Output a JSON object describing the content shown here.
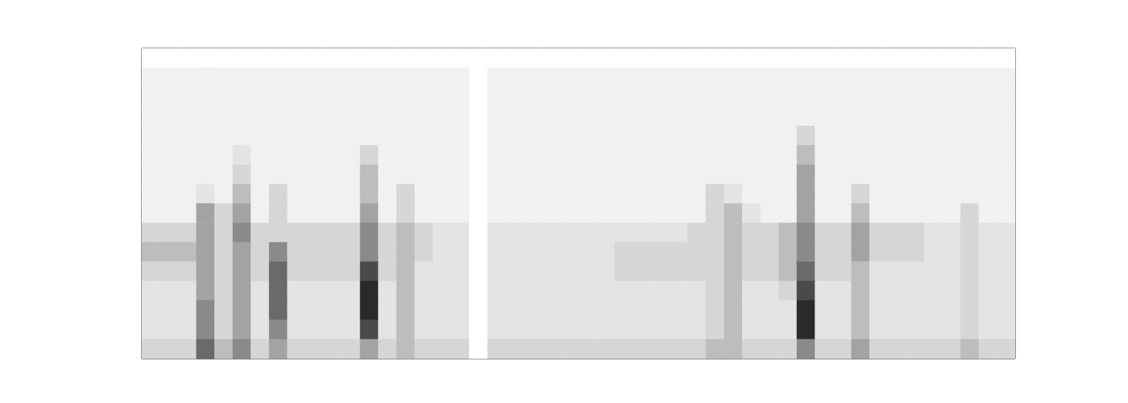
{
  "chart_data": {
    "type": "heatmap",
    "tick_labels": false,
    "color_range": [
      0,
      9
    ],
    "cells": [
      [
        0,
        0,
        0,
        0,
        0,
        0,
        0,
        0,
        0,
        0,
        0,
        0,
        0,
        0,
        0,
        0,
        0,
        0,
        0,
        0,
        0,
        0,
        0,
        0,
        0,
        0,
        0,
        0,
        0,
        0,
        0,
        0,
        0,
        0,
        0,
        0,
        0,
        0,
        0,
        0,
        0,
        0,
        0,
        0,
        0,
        0,
        0,
        0
      ],
      [
        1,
        1,
        1,
        1,
        1,
        1,
        1,
        1,
        1,
        1,
        1,
        1,
        1,
        1,
        1,
        1,
        1,
        1,
        0,
        1,
        1,
        1,
        1,
        1,
        1,
        1,
        1,
        1,
        1,
        1,
        1,
        1,
        1,
        1,
        1,
        1,
        1,
        1,
        1,
        1,
        1,
        1,
        1,
        1,
        1,
        1,
        1,
        1
      ],
      [
        1,
        1,
        1,
        1,
        1,
        1,
        1,
        1,
        1,
        1,
        1,
        1,
        1,
        1,
        1,
        1,
        1,
        1,
        0,
        1,
        1,
        1,
        1,
        1,
        1,
        1,
        1,
        1,
        1,
        1,
        1,
        1,
        1,
        1,
        1,
        1,
        1,
        1,
        1,
        1,
        1,
        1,
        1,
        1,
        1,
        1,
        1,
        1
      ],
      [
        1,
        1,
        1,
        1,
        1,
        1,
        1,
        1,
        1,
        1,
        1,
        1,
        1,
        1,
        1,
        1,
        1,
        1,
        0,
        1,
        1,
        1,
        1,
        1,
        1,
        1,
        1,
        1,
        1,
        1,
        1,
        1,
        1,
        1,
        1,
        1,
        1,
        1,
        1,
        1,
        1,
        1,
        1,
        1,
        1,
        1,
        1,
        1
      ],
      [
        1,
        1,
        1,
        1,
        1,
        1,
        1,
        1,
        1,
        1,
        1,
        1,
        1,
        1,
        1,
        1,
        1,
        1,
        0,
        1,
        1,
        1,
        1,
        1,
        1,
        1,
        1,
        1,
        1,
        1,
        1,
        1,
        1,
        1,
        1,
        1,
        3,
        1,
        1,
        1,
        1,
        1,
        1,
        1,
        1,
        1,
        1,
        1
      ],
      [
        1,
        1,
        1,
        1,
        1,
        2,
        1,
        1,
        1,
        1,
        1,
        1,
        3,
        1,
        1,
        1,
        1,
        1,
        0,
        1,
        1,
        1,
        1,
        1,
        1,
        1,
        1,
        1,
        1,
        1,
        1,
        1,
        1,
        1,
        1,
        1,
        4,
        1,
        1,
        1,
        1,
        1,
        1,
        1,
        1,
        1,
        1,
        1
      ],
      [
        1,
        1,
        1,
        1,
        1,
        3,
        1,
        1,
        1,
        1,
        1,
        1,
        4,
        1,
        1,
        1,
        1,
        1,
        0,
        1,
        1,
        1,
        1,
        1,
        1,
        1,
        1,
        1,
        1,
        1,
        1,
        1,
        1,
        1,
        1,
        1,
        5,
        1,
        1,
        1,
        1,
        1,
        1,
        1,
        1,
        1,
        1,
        1
      ],
      [
        1,
        1,
        1,
        2,
        1,
        4,
        1,
        3,
        1,
        1,
        1,
        1,
        4,
        1,
        3,
        1,
        1,
        1,
        0,
        1,
        1,
        1,
        1,
        1,
        1,
        1,
        1,
        1,
        1,
        1,
        1,
        3,
        2,
        1,
        1,
        1,
        5,
        1,
        1,
        3,
        1,
        1,
        1,
        1,
        1,
        1,
        1,
        1
      ],
      [
        1,
        1,
        1,
        5,
        3,
        5,
        1,
        3,
        1,
        1,
        1,
        1,
        5,
        1,
        3,
        1,
        1,
        1,
        0,
        1,
        1,
        1,
        1,
        1,
        1,
        1,
        1,
        1,
        1,
        1,
        1,
        3,
        4,
        2,
        1,
        1,
        5,
        1,
        1,
        4,
        1,
        1,
        1,
        1,
        1,
        3,
        1,
        1
      ],
      [
        3,
        3,
        3,
        5,
        3,
        6,
        3,
        3,
        3,
        3,
        3,
        3,
        6,
        3,
        4,
        3,
        2,
        2,
        0,
        2,
        2,
        2,
        2,
        2,
        2,
        2,
        2,
        2,
        2,
        2,
        3,
        3,
        4,
        3,
        3,
        4,
        6,
        3,
        3,
        5,
        3,
        3,
        3,
        2,
        2,
        3,
        2,
        2
      ],
      [
        4,
        4,
        4,
        5,
        3,
        5,
        3,
        6,
        3,
        3,
        3,
        3,
        6,
        3,
        4,
        3,
        2,
        2,
        0,
        2,
        2,
        2,
        2,
        2,
        2,
        2,
        3,
        3,
        3,
        3,
        3,
        3,
        4,
        3,
        3,
        4,
        6,
        3,
        3,
        5,
        3,
        3,
        3,
        2,
        2,
        3,
        2,
        2
      ],
      [
        3,
        3,
        3,
        5,
        3,
        5,
        3,
        7,
        3,
        3,
        3,
        3,
        8,
        3,
        4,
        2,
        2,
        2,
        0,
        2,
        2,
        2,
        2,
        2,
        2,
        2,
        3,
        3,
        3,
        3,
        3,
        3,
        4,
        3,
        3,
        4,
        7,
        3,
        3,
        4,
        2,
        2,
        2,
        2,
        2,
        3,
        2,
        2
      ],
      [
        2,
        2,
        2,
        5,
        3,
        5,
        2,
        7,
        2,
        2,
        2,
        2,
        9,
        2,
        4,
        2,
        2,
        2,
        0,
        2,
        2,
        2,
        2,
        2,
        2,
        2,
        2,
        2,
        2,
        2,
        2,
        3,
        4,
        2,
        2,
        3,
        8,
        2,
        2,
        4,
        2,
        2,
        2,
        2,
        2,
        3,
        2,
        2
      ],
      [
        2,
        2,
        2,
        6,
        3,
        5,
        2,
        7,
        2,
        2,
        2,
        2,
        9,
        2,
        4,
        2,
        2,
        2,
        0,
        2,
        2,
        2,
        2,
        2,
        2,
        2,
        2,
        2,
        2,
        2,
        2,
        3,
        4,
        2,
        2,
        2,
        9,
        2,
        2,
        4,
        2,
        2,
        2,
        2,
        2,
        3,
        2,
        2
      ],
      [
        2,
        2,
        2,
        6,
        3,
        5,
        2,
        6,
        2,
        2,
        2,
        2,
        8,
        2,
        4,
        2,
        2,
        2,
        0,
        2,
        2,
        2,
        2,
        2,
        2,
        2,
        2,
        2,
        2,
        2,
        2,
        3,
        4,
        2,
        2,
        2,
        9,
        2,
        2,
        4,
        2,
        2,
        2,
        2,
        2,
        3,
        2,
        2
      ],
      [
        3,
        3,
        3,
        7,
        4,
        6,
        3,
        5,
        3,
        3,
        3,
        3,
        5,
        3,
        4,
        3,
        3,
        3,
        0,
        3,
        3,
        3,
        3,
        3,
        3,
        3,
        3,
        3,
        3,
        3,
        3,
        4,
        4,
        3,
        3,
        3,
        6,
        3,
        3,
        5,
        3,
        3,
        3,
        3,
        3,
        4,
        3,
        3
      ]
    ]
  }
}
